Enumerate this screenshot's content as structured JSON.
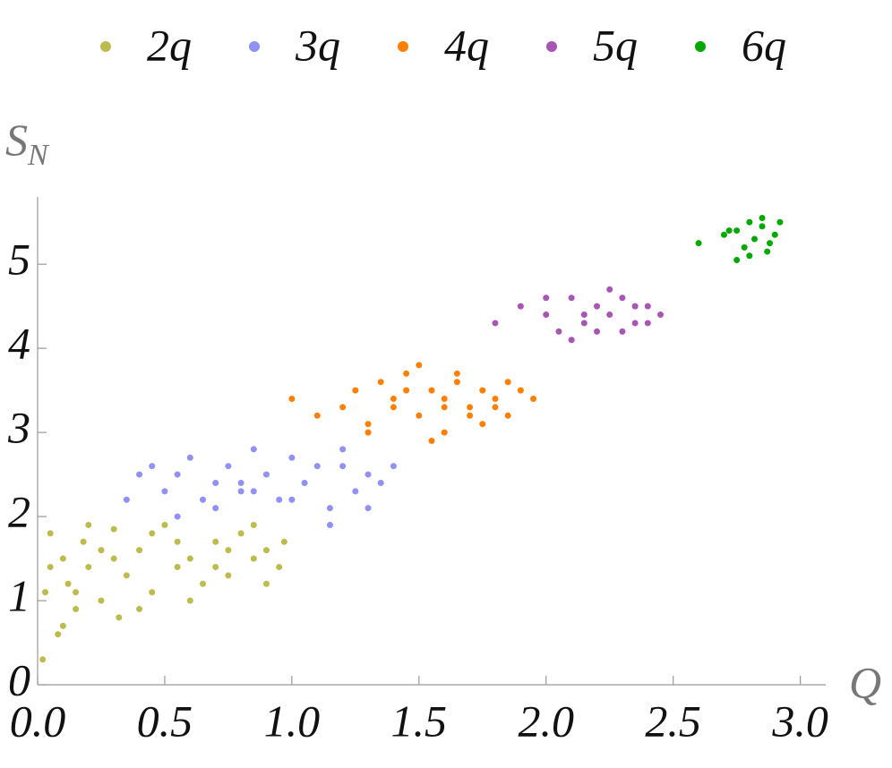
{
  "chart_data": {
    "type": "scatter",
    "xlabel": "Q",
    "ylabel": {
      "main": "S",
      "sub": "N"
    },
    "xlim": [
      0,
      3.1
    ],
    "ylim": [
      0,
      5.8
    ],
    "xticks": [
      {
        "value": 0,
        "label": "0.0"
      },
      0.5,
      {
        "value": 1,
        "label": "1.0"
      },
      1.5,
      {
        "value": 2,
        "label": "2.0"
      },
      2.5,
      {
        "value": 3,
        "label": "3.0"
      }
    ],
    "yticks": [
      0,
      1,
      2,
      3,
      4,
      5
    ],
    "legend": "top",
    "series": [
      {
        "name": "2q",
        "color": "#bcbc4e",
        "x": [
          0.02,
          0.05,
          0.08,
          0.1,
          0.12,
          0.15,
          0.18,
          0.2,
          0.25,
          0.3,
          0.32,
          0.35,
          0.4,
          0.45,
          0.5,
          0.55,
          0.6,
          0.65,
          0.7,
          0.75,
          0.8,
          0.85,
          0.9,
          0.95,
          0.03,
          0.1,
          0.2,
          0.3,
          0.45,
          0.6,
          0.75,
          0.9,
          0.05,
          0.15,
          0.25,
          0.4,
          0.55,
          0.7,
          0.85,
          0.97
        ],
        "y": [
          0.3,
          1.8,
          0.6,
          1.5,
          1.2,
          0.9,
          1.7,
          1.4,
          1.0,
          1.85,
          0.8,
          1.3,
          1.6,
          1.1,
          1.9,
          1.4,
          1.5,
          1.2,
          1.7,
          1.3,
          1.8,
          1.5,
          1.6,
          1.4,
          1.1,
          0.7,
          1.9,
          1.5,
          1.8,
          1.0,
          1.6,
          1.2,
          1.4,
          1.1,
          1.6,
          0.9,
          1.7,
          1.4,
          1.9,
          1.7
        ]
      },
      {
        "name": "3q",
        "color": "#9090f5",
        "x": [
          0.35,
          0.45,
          0.5,
          0.55,
          0.6,
          0.65,
          0.7,
          0.75,
          0.8,
          0.85,
          0.9,
          0.95,
          1.0,
          1.05,
          1.1,
          1.15,
          1.2,
          1.25,
          1.3,
          1.35,
          1.4,
          0.55,
          0.7,
          0.85,
          1.0,
          1.15,
          1.3,
          0.4,
          0.8,
          1.2
        ],
        "y": [
          2.2,
          2.6,
          2.3,
          2.5,
          2.7,
          2.2,
          2.4,
          2.6,
          2.3,
          2.8,
          2.5,
          2.2,
          2.7,
          2.4,
          2.6,
          2.1,
          2.8,
          2.3,
          2.5,
          2.4,
          2.6,
          2.0,
          2.1,
          2.3,
          2.2,
          1.9,
          2.1,
          2.5,
          2.4,
          2.6
        ]
      },
      {
        "name": "4q",
        "color": "#ff8000",
        "x": [
          1.0,
          1.1,
          1.2,
          1.25,
          1.3,
          1.35,
          1.4,
          1.45,
          1.5,
          1.55,
          1.6,
          1.65,
          1.7,
          1.75,
          1.8,
          1.85,
          1.9,
          1.95,
          1.3,
          1.4,
          1.5,
          1.6,
          1.7,
          1.8,
          1.55,
          1.65,
          1.75,
          1.45,
          1.6,
          1.85
        ],
        "y": [
          3.4,
          3.2,
          3.3,
          3.5,
          3.1,
          3.6,
          3.3,
          3.7,
          3.2,
          3.5,
          3.4,
          3.6,
          3.3,
          3.5,
          3.4,
          3.6,
          3.5,
          3.4,
          3.0,
          3.4,
          3.8,
          3.0,
          3.2,
          3.3,
          2.9,
          3.7,
          3.1,
          3.5,
          3.3,
          3.2
        ]
      },
      {
        "name": "5q",
        "color": "#a855b5",
        "x": [
          1.8,
          1.9,
          2.0,
          2.05,
          2.1,
          2.15,
          2.2,
          2.25,
          2.3,
          2.35,
          2.4,
          2.45,
          2.1,
          2.2,
          2.3,
          2.0,
          2.15,
          2.25,
          2.35,
          2.4
        ],
        "y": [
          4.3,
          4.5,
          4.4,
          4.2,
          4.6,
          4.3,
          4.5,
          4.4,
          4.6,
          4.3,
          4.5,
          4.4,
          4.1,
          4.2,
          4.2,
          4.6,
          4.4,
          4.7,
          4.5,
          4.3
        ]
      },
      {
        "name": "6q",
        "color": "#00a800",
        "x": [
          2.6,
          2.7,
          2.75,
          2.78,
          2.8,
          2.82,
          2.85,
          2.87,
          2.9,
          2.92,
          2.8,
          2.85,
          2.75,
          2.88,
          2.72
        ],
        "y": [
          5.25,
          5.35,
          5.4,
          5.2,
          5.5,
          5.3,
          5.45,
          5.15,
          5.35,
          5.5,
          5.1,
          5.55,
          5.05,
          5.25,
          5.4
        ]
      }
    ]
  }
}
